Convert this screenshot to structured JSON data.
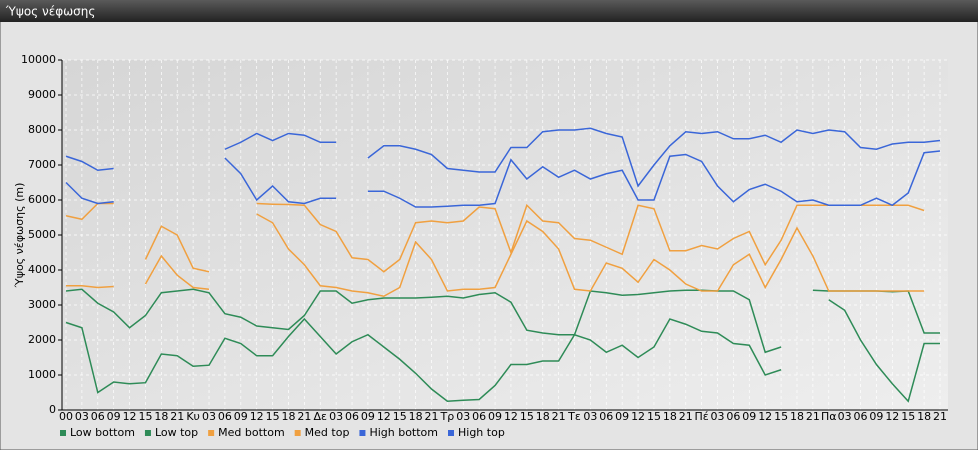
{
  "window_title": "Ύψος νέφωσης",
  "chart_data": {
    "type": "line",
    "y_label": "Ύψος νέφωσης (m)",
    "categories": [
      "00",
      "03",
      "06",
      "09",
      "12",
      "15",
      "18",
      "21",
      "Κυ",
      "03",
      "06",
      "09",
      "12",
      "15",
      "18",
      "21",
      "Δε",
      "03",
      "06",
      "09",
      "12",
      "15",
      "18",
      "21",
      "Τρ",
      "03",
      "06",
      "09",
      "12",
      "15",
      "18",
      "21",
      "Τε",
      "03",
      "06",
      "09",
      "12",
      "15",
      "18",
      "21",
      "Πέ",
      "03",
      "06",
      "09",
      "12",
      "15",
      "18",
      "21",
      "Πα",
      "03",
      "06",
      "09",
      "12",
      "15",
      "18",
      "21"
    ],
    "ylim": [
      0,
      10000
    ],
    "yticks": [
      0,
      1000,
      2000,
      3000,
      4000,
      5000,
      6000,
      7000,
      8000,
      9000,
      10000
    ],
    "grid": true,
    "legend": "bottom",
    "series": [
      {
        "name": "Low bottom",
        "color": "#2e8b57",
        "values": [
          2500,
          2350,
          500,
          800,
          750,
          780,
          1600,
          1550,
          1250,
          1280,
          2050,
          1900,
          1550,
          1550,
          2100,
          2600,
          2100,
          1600,
          1950,
          2150,
          1800,
          1450,
          1050,
          600,
          250,
          280,
          300,
          700,
          1300,
          1300,
          1400,
          1400,
          2150,
          2000,
          1650,
          1850,
          1500,
          1800,
          2600,
          2450,
          2250,
          2200,
          1900,
          1850,
          1000,
          1150,
          null,
          null,
          3150,
          2850,
          2000,
          1300,
          750,
          250,
          1900,
          1900
        ]
      },
      {
        "name": "Low top",
        "color": "#2e8b57",
        "values": [
          3400,
          3450,
          3050,
          2800,
          2350,
          2700,
          3350,
          3400,
          3450,
          3350,
          2750,
          2650,
          2400,
          2350,
          2300,
          2700,
          3400,
          3400,
          3050,
          3150,
          3200,
          3200,
          3200,
          3220,
          3250,
          3200,
          3300,
          3350,
          3080,
          2280,
          2200,
          2150,
          2150,
          3400,
          3350,
          3280,
          3300,
          3350,
          3400,
          3420,
          3420,
          3400,
          3400,
          3150,
          1650,
          1800,
          null,
          3420,
          3400,
          3400,
          3400,
          3400,
          3380,
          3400,
          2200,
          2200
        ]
      },
      {
        "name": "Med bottom",
        "color": "#f0a040",
        "values": [
          3550,
          3550,
          3500,
          3530,
          null,
          3600,
          4400,
          3850,
          3500,
          3450,
          null,
          null,
          5600,
          5350,
          4600,
          4150,
          3550,
          3500,
          3400,
          3350,
          3250,
          3500,
          4800,
          4300,
          3400,
          3450,
          3450,
          3500,
          4450,
          5400,
          5100,
          4600,
          3450,
          3400,
          4200,
          4050,
          3650,
          4300,
          4000,
          3600,
          3400,
          3400,
          4150,
          4450,
          3500,
          4300,
          5200,
          4400,
          3400,
          3400,
          3400,
          3400,
          3400,
          3400,
          3400,
          null
        ]
      },
      {
        "name": "Med top",
        "color": "#f0a040",
        "values": [
          5550,
          5450,
          5900,
          5900,
          null,
          4300,
          5250,
          5000,
          4050,
          3950,
          null,
          null,
          5900,
          5880,
          5870,
          5850,
          5300,
          5100,
          4350,
          4300,
          3950,
          4300,
          5350,
          5400,
          5350,
          5400,
          5800,
          5750,
          4500,
          5850,
          5400,
          5350,
          4900,
          4850,
          4650,
          4450,
          5850,
          5750,
          4550,
          4550,
          4700,
          4600,
          4900,
          5100,
          4150,
          4850,
          5850,
          5850,
          5850,
          5850,
          5850,
          5850,
          5850,
          5850,
          5700,
          null
        ]
      },
      {
        "name": "High bottom",
        "color": "#3a66d8",
        "values": [
          6500,
          6050,
          5900,
          5950,
          null,
          null,
          null,
          null,
          null,
          null,
          7200,
          6750,
          6000,
          6400,
          5950,
          5900,
          6050,
          6050,
          null,
          6250,
          6250,
          6050,
          5800,
          5800,
          5820,
          5850,
          5850,
          5900,
          7150,
          6600,
          6950,
          6650,
          6850,
          6600,
          6750,
          6850,
          6000,
          6000,
          7250,
          7300,
          7100,
          6400,
          5950,
          6300,
          6450,
          6250,
          5950,
          6000,
          5850,
          5850,
          5850,
          6050,
          5850,
          6200,
          7350,
          7400
        ]
      },
      {
        "name": "High top",
        "color": "#3a66d8",
        "values": [
          7250,
          7100,
          6850,
          6900,
          null,
          null,
          null,
          null,
          null,
          null,
          7450,
          7650,
          7900,
          7700,
          7900,
          7850,
          7650,
          7650,
          null,
          7200,
          7550,
          7550,
          7450,
          7300,
          6900,
          6850,
          6800,
          6800,
          7500,
          7500,
          7950,
          8000,
          8000,
          8050,
          7900,
          7800,
          6400,
          7000,
          7550,
          7950,
          7900,
          7950,
          7750,
          7750,
          7850,
          7650,
          8000,
          7900,
          8000,
          7950,
          7500,
          7450,
          7600,
          7650,
          7650,
          7700
        ]
      }
    ]
  }
}
